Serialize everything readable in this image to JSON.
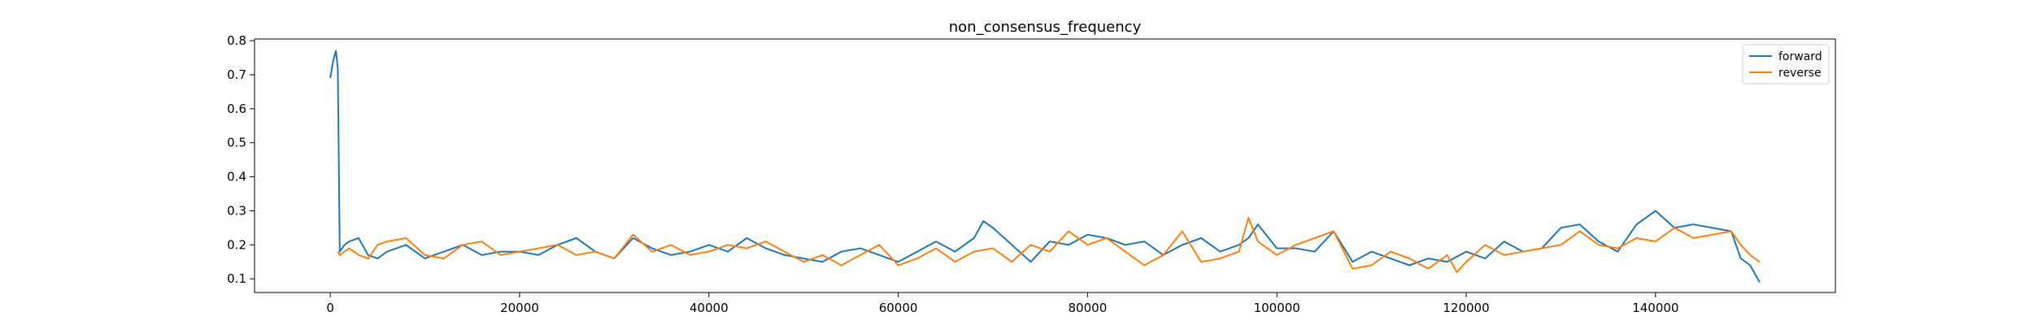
{
  "chart_data": {
    "type": "line",
    "title": "non_consensus_frequency",
    "xlabel": "",
    "ylabel": "",
    "xlim": [
      -8000,
      159000
    ],
    "ylim": [
      0.06,
      0.805
    ],
    "xticks": [
      0,
      20000,
      40000,
      60000,
      80000,
      100000,
      120000,
      140000
    ],
    "xtick_labels": [
      "0",
      "20000",
      "40000",
      "60000",
      "80000",
      "100000",
      "120000",
      "140000"
    ],
    "yticks": [
      0.1,
      0.2,
      0.3,
      0.4,
      0.5,
      0.6,
      0.7,
      0.8
    ],
    "ytick_labels": [
      "0.1",
      "0.2",
      "0.3",
      "0.4",
      "0.5",
      "0.6",
      "0.7",
      "0.8"
    ],
    "grid": false,
    "legend_position": "top-right",
    "series": [
      {
        "name": "forward",
        "color": "#1f77b4",
        "x": [
          0,
          300,
          600,
          800,
          1000,
          1500,
          2000,
          3000,
          4000,
          5000,
          6000,
          8000,
          10000,
          12000,
          14000,
          16000,
          18000,
          20000,
          22000,
          24000,
          26000,
          28000,
          30000,
          32000,
          34000,
          36000,
          38000,
          40000,
          42000,
          44000,
          46000,
          48000,
          50000,
          52000,
          54000,
          56000,
          58000,
          60000,
          62000,
          64000,
          66000,
          68000,
          69000,
          70000,
          72000,
          74000,
          76000,
          78000,
          80000,
          82000,
          84000,
          86000,
          88000,
          90000,
          92000,
          94000,
          96000,
          97000,
          98000,
          100000,
          102000,
          104000,
          106000,
          108000,
          110000,
          112000,
          114000,
          116000,
          118000,
          120000,
          122000,
          124000,
          126000,
          128000,
          130000,
          132000,
          134000,
          136000,
          138000,
          140000,
          142000,
          144000,
          146000,
          148000,
          149000,
          150000,
          151000
        ],
        "y": [
          0.69,
          0.74,
          0.77,
          0.72,
          0.18,
          0.2,
          0.21,
          0.22,
          0.17,
          0.16,
          0.18,
          0.2,
          0.16,
          0.18,
          0.2,
          0.17,
          0.18,
          0.18,
          0.17,
          0.2,
          0.22,
          0.18,
          0.16,
          0.22,
          0.19,
          0.17,
          0.18,
          0.2,
          0.18,
          0.22,
          0.19,
          0.17,
          0.16,
          0.15,
          0.18,
          0.19,
          0.17,
          0.15,
          0.18,
          0.21,
          0.18,
          0.22,
          0.27,
          0.25,
          0.2,
          0.15,
          0.21,
          0.2,
          0.23,
          0.22,
          0.2,
          0.21,
          0.17,
          0.2,
          0.22,
          0.18,
          0.2,
          0.22,
          0.26,
          0.19,
          0.19,
          0.18,
          0.24,
          0.15,
          0.18,
          0.16,
          0.14,
          0.16,
          0.15,
          0.18,
          0.16,
          0.21,
          0.18,
          0.19,
          0.25,
          0.26,
          0.21,
          0.18,
          0.26,
          0.3,
          0.25,
          0.26,
          0.25,
          0.24,
          0.16,
          0.14,
          0.09
        ]
      },
      {
        "name": "reverse",
        "color": "#ff7f0e",
        "x": [
          800,
          1000,
          2000,
          3000,
          4000,
          5000,
          6000,
          8000,
          10000,
          12000,
          14000,
          16000,
          18000,
          20000,
          22000,
          24000,
          26000,
          28000,
          30000,
          32000,
          34000,
          36000,
          38000,
          40000,
          42000,
          44000,
          46000,
          48000,
          50000,
          52000,
          54000,
          56000,
          58000,
          60000,
          62000,
          64000,
          66000,
          68000,
          70000,
          72000,
          74000,
          76000,
          78000,
          80000,
          82000,
          84000,
          86000,
          88000,
          90000,
          92000,
          94000,
          96000,
          97000,
          98000,
          100000,
          102000,
          104000,
          106000,
          108000,
          110000,
          112000,
          114000,
          116000,
          118000,
          119000,
          120000,
          122000,
          124000,
          126000,
          128000,
          130000,
          132000,
          134000,
          136000,
          138000,
          140000,
          142000,
          144000,
          146000,
          148000,
          149000,
          150000,
          151000
        ],
        "y": [
          0.18,
          0.17,
          0.19,
          0.17,
          0.16,
          0.2,
          0.21,
          0.22,
          0.17,
          0.16,
          0.2,
          0.21,
          0.17,
          0.18,
          0.19,
          0.2,
          0.17,
          0.18,
          0.16,
          0.23,
          0.18,
          0.2,
          0.17,
          0.18,
          0.2,
          0.19,
          0.21,
          0.18,
          0.15,
          0.17,
          0.14,
          0.17,
          0.2,
          0.14,
          0.16,
          0.19,
          0.15,
          0.18,
          0.19,
          0.15,
          0.2,
          0.18,
          0.24,
          0.2,
          0.22,
          0.18,
          0.14,
          0.17,
          0.24,
          0.15,
          0.16,
          0.18,
          0.28,
          0.21,
          0.17,
          0.2,
          0.22,
          0.24,
          0.13,
          0.14,
          0.18,
          0.16,
          0.13,
          0.17,
          0.12,
          0.15,
          0.2,
          0.17,
          0.18,
          0.19,
          0.2,
          0.24,
          0.2,
          0.19,
          0.22,
          0.21,
          0.25,
          0.22,
          0.23,
          0.24,
          0.2,
          0.17,
          0.15
        ]
      }
    ]
  }
}
